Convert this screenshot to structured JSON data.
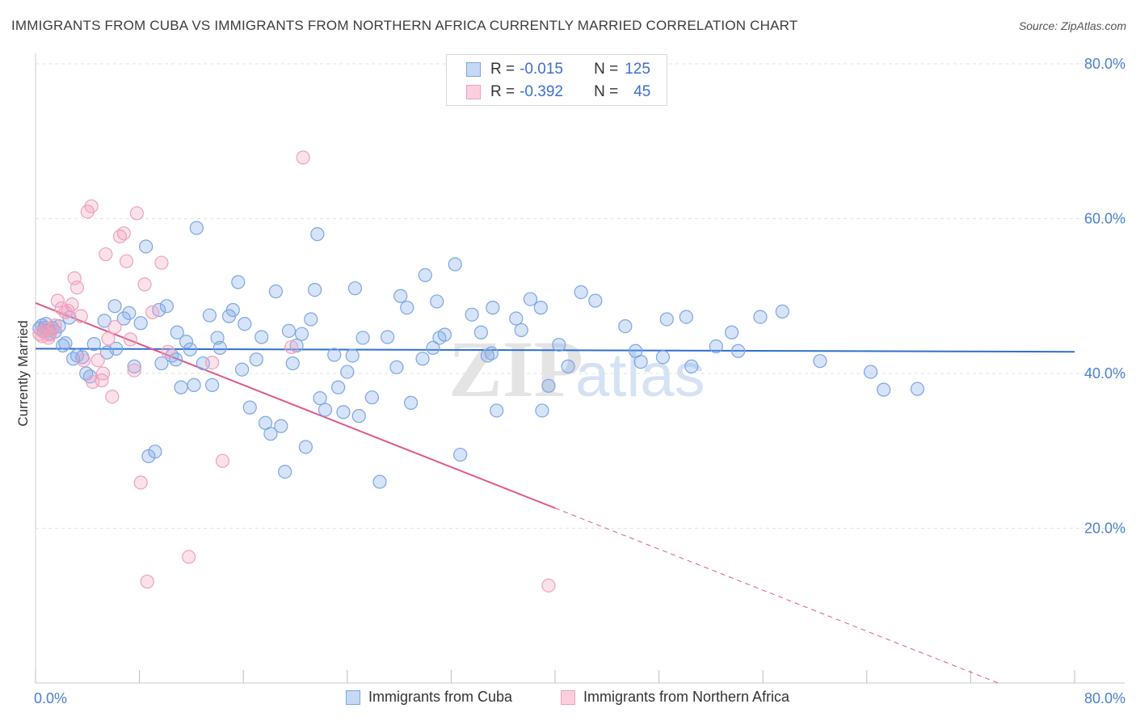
{
  "title": "IMMIGRANTS FROM CUBA VS IMMIGRANTS FROM NORTHERN AFRICA CURRENTLY MARRIED CORRELATION CHART",
  "source": "Source: ZipAtlas.com",
  "watermark": {
    "zip": "ZIP",
    "atlas": "atlas"
  },
  "legend": {
    "rows": [
      {
        "r_label": "R =",
        "r_value": "-0.015",
        "n_label": "N =",
        "n_value": "125",
        "color": "#7aa6e6"
      },
      {
        "r_label": "R =",
        "r_value": "-0.392",
        "n_label": "N =",
        "n_value": "45",
        "color": "#f0a0bc"
      }
    ]
  },
  "bottom_legend": {
    "cuba": "Immigrants from Cuba",
    "northern_africa": "Immigrants from Northern Africa"
  },
  "chart_data": {
    "type": "scatter",
    "title": "IMMIGRANTS FROM CUBA VS IMMIGRANTS FROM NORTHERN AFRICA CURRENTLY MARRIED CORRELATION CHART",
    "xlabel": "",
    "ylabel": "Currently Married",
    "xlim": [
      0,
      80
    ],
    "ylim": [
      0,
      80
    ],
    "x_tick_labels": [
      "0.0%",
      "80.0%"
    ],
    "y_tick_labels": [
      "20.0%",
      "40.0%",
      "60.0%",
      "80.0%"
    ],
    "y_ticks": [
      20,
      40,
      60,
      80
    ],
    "grid": true,
    "legend_position": "top-center",
    "colors": {
      "cuba": "#7aa6e6",
      "cuba_line": "#2f6fd1",
      "northern_africa": "#f0a0bc",
      "northern_africa_line": "#e0588a"
    },
    "series": [
      {
        "name": "Immigrants from Cuba",
        "trend": {
          "x": [
            0,
            80
          ],
          "y": [
            43.2,
            42.8
          ],
          "dashed_from": null
        },
        "points": [
          [
            0.3,
            45.8
          ],
          [
            0.5,
            46.2
          ],
          [
            0.6,
            45.5
          ],
          [
            0.7,
            45.9
          ],
          [
            0.8,
            46.4
          ],
          [
            1.0,
            45.6
          ],
          [
            1.1,
            45.2
          ],
          [
            1.3,
            45.9
          ],
          [
            1.5,
            45.4
          ],
          [
            1.8,
            46.1
          ],
          [
            2.1,
            43.6
          ],
          [
            2.3,
            43.9
          ],
          [
            2.6,
            47.2
          ],
          [
            2.9,
            41.9
          ],
          [
            3.2,
            42.3
          ],
          [
            3.6,
            42.1
          ],
          [
            3.9,
            40.0
          ],
          [
            4.2,
            39.6
          ],
          [
            4.5,
            43.8
          ],
          [
            5.3,
            46.8
          ],
          [
            5.5,
            42.7
          ],
          [
            6.1,
            48.7
          ],
          [
            6.2,
            43.2
          ],
          [
            6.8,
            47.1
          ],
          [
            7.2,
            47.8
          ],
          [
            7.6,
            40.9
          ],
          [
            8.1,
            46.5
          ],
          [
            8.5,
            56.4
          ],
          [
            8.7,
            29.3
          ],
          [
            9.2,
            29.9
          ],
          [
            9.5,
            48.2
          ],
          [
            9.7,
            41.3
          ],
          [
            10.1,
            48.7
          ],
          [
            10.5,
            42.3
          ],
          [
            10.8,
            41.8
          ],
          [
            10.9,
            45.3
          ],
          [
            11.2,
            38.2
          ],
          [
            11.6,
            44.1
          ],
          [
            11.9,
            43.1
          ],
          [
            12.2,
            38.5
          ],
          [
            12.4,
            58.8
          ],
          [
            12.9,
            41.3
          ],
          [
            13.4,
            47.5
          ],
          [
            13.6,
            38.5
          ],
          [
            14.0,
            44.6
          ],
          [
            14.2,
            43.3
          ],
          [
            14.9,
            47.4
          ],
          [
            15.2,
            48.2
          ],
          [
            15.6,
            51.8
          ],
          [
            15.9,
            40.5
          ],
          [
            16.1,
            46.4
          ],
          [
            16.5,
            35.6
          ],
          [
            17.0,
            41.8
          ],
          [
            17.4,
            44.7
          ],
          [
            17.7,
            33.6
          ],
          [
            18.1,
            32.2
          ],
          [
            18.5,
            50.6
          ],
          [
            18.9,
            33.2
          ],
          [
            19.2,
            27.3
          ],
          [
            19.5,
            45.5
          ],
          [
            19.8,
            41.3
          ],
          [
            20.1,
            43.6
          ],
          [
            20.5,
            45.1
          ],
          [
            20.8,
            30.5
          ],
          [
            21.2,
            47.0
          ],
          [
            21.5,
            50.8
          ],
          [
            21.7,
            58.0
          ],
          [
            21.9,
            36.8
          ],
          [
            22.3,
            35.3
          ],
          [
            23.0,
            42.4
          ],
          [
            23.3,
            38.2
          ],
          [
            23.7,
            35.0
          ],
          [
            24.0,
            40.2
          ],
          [
            24.4,
            42.3
          ],
          [
            24.6,
            51.0
          ],
          [
            24.9,
            34.5
          ],
          [
            25.2,
            44.6
          ],
          [
            25.9,
            36.9
          ],
          [
            26.5,
            26.0
          ],
          [
            27.1,
            44.7
          ],
          [
            27.8,
            40.8
          ],
          [
            28.1,
            50.0
          ],
          [
            28.6,
            48.5
          ],
          [
            28.9,
            36.2
          ],
          [
            29.8,
            41.9
          ],
          [
            30.0,
            52.7
          ],
          [
            30.6,
            43.3
          ],
          [
            30.9,
            49.3
          ],
          [
            31.1,
            44.6
          ],
          [
            31.5,
            45.0
          ],
          [
            32.3,
            54.1
          ],
          [
            32.7,
            29.5
          ],
          [
            33.6,
            47.6
          ],
          [
            34.3,
            45.3
          ],
          [
            34.8,
            42.3
          ],
          [
            35.1,
            42.6
          ],
          [
            35.2,
            48.5
          ],
          [
            35.5,
            35.2
          ],
          [
            37.0,
            47.1
          ],
          [
            37.4,
            45.6
          ],
          [
            38.1,
            49.6
          ],
          [
            38.9,
            48.5
          ],
          [
            39.0,
            35.2
          ],
          [
            39.5,
            38.4
          ],
          [
            40.3,
            43.7
          ],
          [
            41.0,
            40.9
          ],
          [
            42.0,
            50.5
          ],
          [
            43.1,
            49.4
          ],
          [
            45.4,
            46.1
          ],
          [
            46.2,
            42.9
          ],
          [
            46.6,
            41.5
          ],
          [
            48.3,
            42.1
          ],
          [
            48.6,
            47.0
          ],
          [
            50.1,
            47.3
          ],
          [
            50.5,
            40.9
          ],
          [
            52.4,
            43.5
          ],
          [
            53.6,
            45.3
          ],
          [
            54.1,
            42.9
          ],
          [
            55.8,
            47.3
          ],
          [
            57.5,
            48.0
          ],
          [
            60.4,
            41.6
          ],
          [
            64.3,
            40.2
          ],
          [
            65.3,
            37.9
          ],
          [
            67.9,
            38.0
          ]
        ]
      },
      {
        "name": "Immigrants from Northern Africa",
        "trend": {
          "x": [
            0,
            40,
            80
          ],
          "y": [
            49.1,
            22.6,
            -3.9
          ],
          "dashed_from": 40
        },
        "points": [
          [
            0.3,
            45.1
          ],
          [
            0.5,
            44.8
          ],
          [
            0.6,
            45.4
          ],
          [
            0.8,
            45.8
          ],
          [
            1.0,
            44.6
          ],
          [
            1.1,
            45.0
          ],
          [
            1.3,
            45.7
          ],
          [
            1.5,
            46.2
          ],
          [
            1.7,
            49.4
          ],
          [
            2.0,
            48.4
          ],
          [
            2.3,
            47.9
          ],
          [
            2.5,
            48.1
          ],
          [
            2.8,
            48.9
          ],
          [
            3.0,
            52.3
          ],
          [
            3.2,
            51.1
          ],
          [
            3.5,
            47.4
          ],
          [
            3.7,
            41.7
          ],
          [
            4.0,
            60.9
          ],
          [
            4.3,
            61.6
          ],
          [
            4.4,
            38.9
          ],
          [
            4.8,
            41.7
          ],
          [
            5.1,
            39.1
          ],
          [
            5.4,
            55.4
          ],
          [
            5.6,
            44.5
          ],
          [
            5.9,
            37.0
          ],
          [
            6.1,
            46.0
          ],
          [
            6.5,
            57.7
          ],
          [
            6.8,
            58.1
          ],
          [
            7.0,
            54.5
          ],
          [
            7.3,
            44.4
          ],
          [
            7.6,
            40.4
          ],
          [
            7.8,
            60.7
          ],
          [
            8.1,
            25.9
          ],
          [
            8.4,
            51.5
          ],
          [
            8.6,
            13.1
          ],
          [
            9.0,
            47.9
          ],
          [
            9.7,
            54.3
          ],
          [
            10.2,
            42.8
          ],
          [
            11.8,
            16.3
          ],
          [
            13.6,
            41.4
          ],
          [
            14.4,
            28.7
          ],
          [
            19.7,
            43.4
          ],
          [
            20.6,
            67.9
          ],
          [
            39.5,
            12.6
          ],
          [
            5.2,
            40.0
          ]
        ]
      }
    ]
  }
}
